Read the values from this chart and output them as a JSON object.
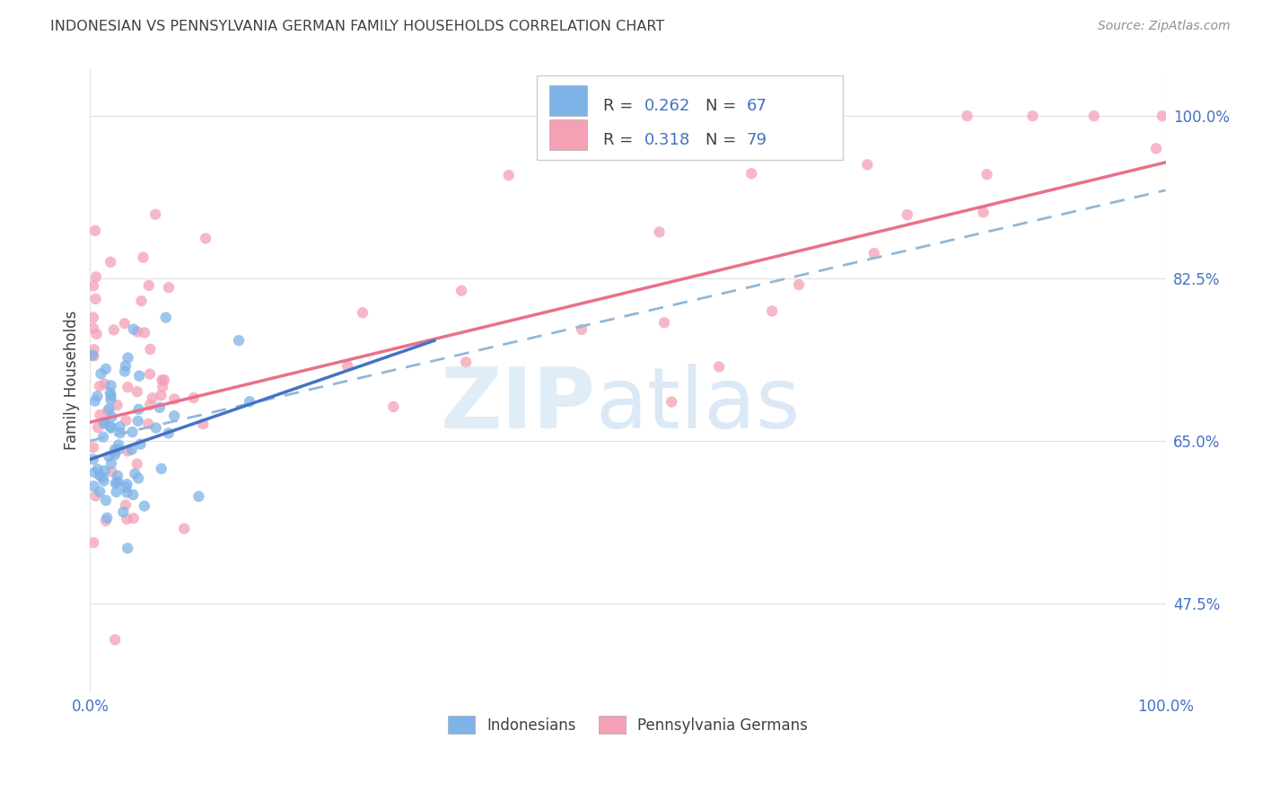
{
  "title": "INDONESIAN VS PENNSYLVANIA GERMAN FAMILY HOUSEHOLDS CORRELATION CHART",
  "source": "Source: ZipAtlas.com",
  "ylabel": "Family Households",
  "color_blue": "#7eb3e8",
  "color_pink": "#f4a0b5",
  "color_blue_dark": "#4472C4",
  "color_pink_line": "#E8708A",
  "color_blue_line": "#4472C4",
  "color_dashed": "#90b8d8",
  "title_color": "#404040",
  "source_color": "#909090",
  "background": "#ffffff",
  "grid_color": "#e0e0e0",
  "ytick_color": "#4472C4",
  "xtick_color": "#4472C4",
  "legend_r1": "R = 0.262",
  "legend_n1": "N = 67",
  "legend_r2": "R = 0.318",
  "legend_n2": "N = 79",
  "legend_text_color": "#4472C4",
  "legend_rn_color": "#404040"
}
